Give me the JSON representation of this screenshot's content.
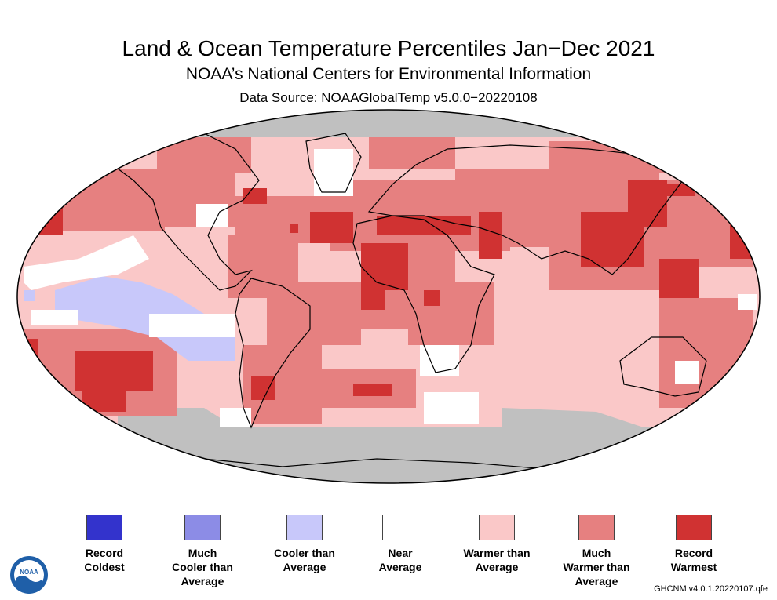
{
  "title": "Land & Ocean Temperature Percentiles Jan−Dec 2021",
  "subtitle": "NOAA’s National Centers for Environmental Information",
  "data_source": "Data Source: NOAAGlobalTemp v5.0.0−20220108",
  "version": "GHCNM v4.0.1.20220107.qfe",
  "logo_text": "NOAA",
  "colors": {
    "record_coldest": "#3333cc",
    "much_cooler": "#8c8ce6",
    "cooler": "#c8c8fa",
    "near": "#ffffff",
    "warmer": "#fac8c8",
    "much_warmer": "#e68080",
    "record_warmest": "#d03232",
    "missing": "#c0c0c0"
  },
  "legend": [
    {
      "label": "Record\nColdest",
      "color": "#3333cc"
    },
    {
      "label": "Much\nCooler than\nAverage",
      "color": "#8c8ce6"
    },
    {
      "label": "Cooler than\nAverage",
      "color": "#c8c8fa"
    },
    {
      "label": "Near\nAverage",
      "color": "#ffffff"
    },
    {
      "label": "Warmer than\nAverage",
      "color": "#fac8c8"
    },
    {
      "label": "Much\nWarmer than\nAverage",
      "color": "#e68080"
    },
    {
      "label": "Record\nWarmest",
      "color": "#d03232"
    }
  ]
}
